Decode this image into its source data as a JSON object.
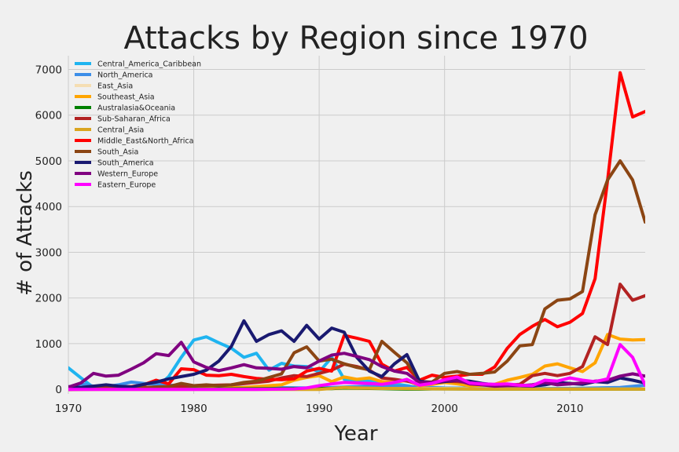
{
  "chart_data": {
    "type": "line",
    "title": "Attacks by Region since 1970",
    "xlabel": "Year",
    "ylabel": "# of Attacks",
    "xlim": [
      1970,
      2016
    ],
    "ylim": [
      -100,
      7300
    ],
    "xticks": [
      1970,
      1980,
      1990,
      2000,
      2010
    ],
    "yticks": [
      0,
      1000,
      2000,
      3000,
      4000,
      5000,
      6000,
      7000
    ],
    "grid": true,
    "legend_position": "top-left",
    "series": [
      {
        "name": "Central_America_Caribbean",
        "color": "#1fb4f0",
        "x": [
          1970,
          1971,
          1972,
          1973,
          1974,
          1975,
          1976,
          1977,
          1978,
          1979,
          1980,
          1981,
          1982,
          1983,
          1984,
          1985,
          1986,
          1987,
          1988,
          1989,
          1990,
          1991,
          1992,
          1993,
          1994,
          1995,
          1996,
          1997,
          1998,
          1999,
          2000,
          2005,
          2010,
          2016
        ],
        "y": [
          470,
          250,
          40,
          50,
          80,
          60,
          40,
          40,
          280,
          700,
          1080,
          1150,
          1020,
          900,
          700,
          790,
          420,
          570,
          510,
          500,
          380,
          700,
          220,
          200,
          180,
          150,
          120,
          80,
          30,
          20,
          15,
          10,
          10,
          10
        ]
      },
      {
        "name": "North_America",
        "color": "#3c8ee8",
        "x": [
          1970,
          1971,
          1972,
          1973,
          1974,
          1975,
          1976,
          1977,
          1978,
          1979,
          1980,
          1981,
          1982,
          1983,
          1984,
          1985,
          1990,
          1995,
          2000,
          2005,
          2010,
          2014,
          2016
        ],
        "y": [
          20,
          120,
          70,
          60,
          100,
          160,
          130,
          110,
          90,
          80,
          70,
          60,
          50,
          40,
          40,
          40,
          30,
          80,
          30,
          20,
          20,
          40,
          90
        ]
      },
      {
        "name": "East_Asia",
        "color": "#f5deb3",
        "x": [
          1970,
          1980,
          1990,
          2000,
          2010,
          2016
        ],
        "y": [
          0,
          10,
          10,
          20,
          10,
          10
        ]
      },
      {
        "name": "Southeast_Asia",
        "color": "#ffa500",
        "x": [
          1970,
          1975,
          1980,
          1984,
          1987,
          1988,
          1989,
          1990,
          1991,
          1992,
          1993,
          1994,
          1995,
          1996,
          1997,
          1998,
          1999,
          2000,
          2001,
          2002,
          2003,
          2004,
          2005,
          2006,
          2007,
          2008,
          2009,
          2010,
          2011,
          2012,
          2013,
          2014,
          2015,
          2016
        ],
        "y": [
          0,
          10,
          20,
          40,
          100,
          200,
          260,
          300,
          170,
          270,
          220,
          250,
          170,
          150,
          200,
          80,
          110,
          150,
          120,
          80,
          90,
          110,
          200,
          260,
          330,
          510,
          560,
          470,
          390,
          580,
          1200,
          1100,
          1080,
          1090
        ]
      },
      {
        "name": "Australasia&Oceania",
        "color": "#008000",
        "x": [
          1970,
          1980,
          1990,
          1991,
          1992,
          1993,
          1994,
          1995,
          1996,
          1997,
          1998,
          1999,
          2000,
          2005,
          2010,
          2016
        ],
        "y": [
          0,
          10,
          20,
          15,
          30,
          25,
          20,
          15,
          10,
          5,
          5,
          10,
          10,
          5,
          5,
          5
        ]
      },
      {
        "name": "Sub-Saharan_Africa",
        "color": "#b22222",
        "x": [
          1970,
          1975,
          1978,
          1980,
          1983,
          1985,
          1986,
          1987,
          1988,
          1989,
          1990,
          1991,
          1992,
          1993,
          1994,
          1995,
          1996,
          1997,
          1998,
          1999,
          2000,
          2001,
          2002,
          2003,
          2004,
          2005,
          2006,
          2007,
          2008,
          2009,
          2010,
          2011,
          2012,
          2013,
          2014,
          2015,
          2016
        ],
        "y": [
          0,
          30,
          60,
          80,
          100,
          150,
          180,
          250,
          300,
          280,
          350,
          420,
          550,
          500,
          420,
          250,
          220,
          180,
          120,
          160,
          180,
          170,
          150,
          110,
          80,
          90,
          110,
          300,
          350,
          300,
          350,
          500,
          1150,
          980,
          2300,
          1950,
          2050
        ]
      },
      {
        "name": "Central_Asia",
        "color": "#daa520",
        "x": [
          1970,
          1990,
          1992,
          1993,
          1995,
          2000,
          2005,
          2010,
          2016
        ],
        "y": [
          0,
          0,
          40,
          30,
          20,
          10,
          5,
          5,
          5
        ]
      },
      {
        "name": "Middle_East&North_Africa",
        "color": "#ff0000",
        "x": [
          1970,
          1971,
          1972,
          1973,
          1974,
          1975,
          1976,
          1977,
          1978,
          1979,
          1980,
          1981,
          1982,
          1983,
          1984,
          1985,
          1986,
          1987,
          1988,
          1989,
          1990,
          1991,
          1992,
          1993,
          1994,
          1995,
          1996,
          1997,
          1998,
          1999,
          2000,
          2001,
          2002,
          2003,
          2004,
          2005,
          2006,
          2007,
          2008,
          2009,
          2010,
          2011,
          2012,
          2013,
          2014,
          2015,
          2016
        ],
        "y": [
          30,
          20,
          30,
          40,
          60,
          60,
          100,
          200,
          120,
          450,
          430,
          310,
          300,
          330,
          280,
          240,
          220,
          210,
          230,
          400,
          460,
          400,
          1180,
          1120,
          1050,
          550,
          400,
          480,
          200,
          310,
          260,
          290,
          330,
          330,
          490,
          900,
          1200,
          1380,
          1530,
          1370,
          1470,
          1660,
          2420,
          4570,
          6930,
          5960,
          6080
        ]
      },
      {
        "name": "South_Asia",
        "color": "#8b4513",
        "x": [
          1970,
          1972,
          1974,
          1976,
          1978,
          1979,
          1980,
          1981,
          1982,
          1983,
          1984,
          1985,
          1986,
          1987,
          1988,
          1989,
          1990,
          1991,
          1992,
          1993,
          1994,
          1995,
          1996,
          1997,
          1998,
          1999,
          2000,
          2001,
          2002,
          2003,
          2004,
          2005,
          2006,
          2007,
          2008,
          2009,
          2010,
          2011,
          2012,
          2013,
          2014,
          2015,
          2016
        ],
        "y": [
          0,
          20,
          30,
          40,
          60,
          130,
          80,
          100,
          80,
          100,
          150,
          180,
          260,
          340,
          800,
          930,
          620,
          660,
          560,
          480,
          430,
          1050,
          810,
          580,
          170,
          160,
          350,
          390,
          330,
          350,
          380,
          620,
          950,
          980,
          1760,
          1950,
          1980,
          2140,
          3820,
          4580,
          5000,
          4580,
          3660
        ]
      },
      {
        "name": "South_America",
        "color": "#191970",
        "x": [
          1970,
          1971,
          1972,
          1973,
          1974,
          1975,
          1976,
          1977,
          1978,
          1979,
          1980,
          1981,
          1982,
          1983,
          1984,
          1985,
          1986,
          1987,
          1988,
          1989,
          1990,
          1991,
          1992,
          1993,
          1994,
          1995,
          1996,
          1997,
          1998,
          1999,
          2000,
          2001,
          2002,
          2003,
          2004,
          2005,
          2006,
          2007,
          2008,
          2009,
          2010,
          2011,
          2012,
          2013,
          2014,
          2015,
          2016
        ],
        "y": [
          60,
          40,
          70,
          100,
          70,
          50,
          110,
          160,
          230,
          280,
          330,
          420,
          620,
          940,
          1500,
          1050,
          1200,
          1280,
          1050,
          1400,
          1100,
          1340,
          1250,
          700,
          400,
          280,
          560,
          760,
          180,
          140,
          170,
          200,
          180,
          130,
          100,
          80,
          80,
          70,
          100,
          150,
          130,
          110,
          170,
          150,
          250,
          200,
          140
        ]
      },
      {
        "name": "Western_Europe",
        "color": "#800080",
        "x": [
          1970,
          1971,
          1972,
          1973,
          1974,
          1975,
          1976,
          1977,
          1978,
          1979,
          1980,
          1981,
          1982,
          1983,
          1984,
          1985,
          1986,
          1987,
          1988,
          1989,
          1990,
          1991,
          1992,
          1993,
          1994,
          1995,
          1996,
          1997,
          1998,
          1999,
          2000,
          2001,
          2002,
          2003,
          2004,
          2005,
          2006,
          2007,
          2008,
          2009,
          2010,
          2011,
          2012,
          2013,
          2014,
          2015,
          2016
        ],
        "y": [
          50,
          140,
          350,
          290,
          310,
          440,
          580,
          780,
          740,
          1030,
          600,
          480,
          410,
          470,
          540,
          470,
          460,
          440,
          500,
          470,
          620,
          750,
          790,
          720,
          650,
          500,
          400,
          350,
          150,
          150,
          190,
          200,
          120,
          100,
          70,
          80,
          80,
          100,
          150,
          100,
          120,
          140,
          180,
          200,
          290,
          340,
          290
        ]
      },
      {
        "name": "Eastern_Europe",
        "color": "#ff00ff",
        "x": [
          1970,
          1985,
          1988,
          1989,
          1990,
          1991,
          1992,
          1993,
          1994,
          1995,
          1996,
          1997,
          1998,
          1999,
          2000,
          2001,
          2002,
          2003,
          2004,
          2005,
          2006,
          2007,
          2008,
          2009,
          2010,
          2011,
          2012,
          2013,
          2014,
          2015,
          2016
        ],
        "y": [
          0,
          0,
          10,
          30,
          80,
          120,
          150,
          140,
          130,
          110,
          150,
          220,
          90,
          130,
          210,
          270,
          140,
          120,
          110,
          120,
          90,
          80,
          200,
          180,
          250,
          200,
          170,
          230,
          980,
          700,
          90
        ]
      }
    ]
  }
}
